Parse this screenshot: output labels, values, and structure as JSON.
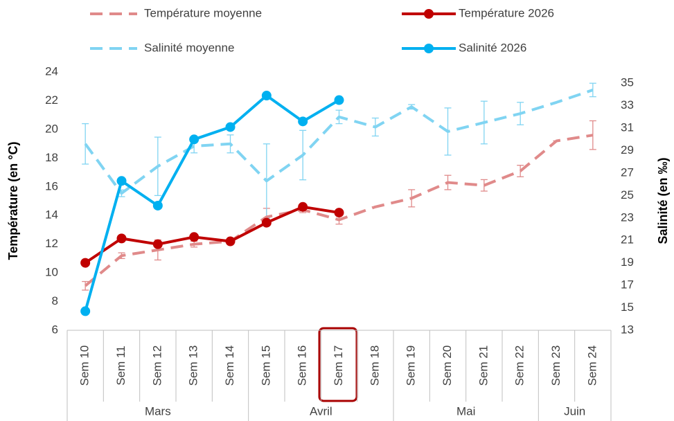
{
  "chart_data": {
    "type": "line",
    "categories": [
      "Sem 10",
      "Sem 11",
      "Sem 12",
      "Sem 13",
      "Sem 14",
      "Sem 15",
      "Sem 16",
      "Sem 17",
      "Sem 18",
      "Sem 19",
      "Sem 20",
      "Sem 21",
      "Sem 22",
      "Sem 23",
      "Sem 24"
    ],
    "groups": [
      {
        "label": "Mars",
        "span": 5
      },
      {
        "label": "Avril",
        "span": 4
      },
      {
        "label": "Mai",
        "span": 4
      },
      {
        "label": "Juin",
        "span": 2
      }
    ],
    "ylabel": "Température (en °C)",
    "y2label": "Salinité (en ‰)",
    "ylim": [
      6,
      24
    ],
    "yticks": [
      6,
      8,
      10,
      12,
      14,
      16,
      18,
      20,
      22,
      24
    ],
    "y2lim": [
      13,
      36
    ],
    "y2ticks": [
      13,
      15,
      17,
      19,
      21,
      23,
      25,
      27,
      29,
      31,
      33,
      35
    ],
    "series": [
      {
        "name": "Température moyenne",
        "color": "#e08a8a",
        "dashed": true,
        "markers": false,
        "axis": "y",
        "values": [
          9.1,
          11.2,
          11.6,
          12.0,
          12.2,
          13.9,
          14.4,
          13.7,
          14.6,
          15.2,
          16.3,
          16.1,
          17.1,
          19.2,
          19.6
        ],
        "errors": [
          0.3,
          0.2,
          0.7,
          0.2,
          0,
          0.6,
          0.2,
          0.3,
          0,
          0.6,
          0.5,
          0.4,
          0.4,
          0,
          1.0
        ]
      },
      {
        "name": "Température 2026",
        "color": "#c00000",
        "dashed": false,
        "markers": true,
        "axis": "y",
        "values": [
          10.7,
          12.4,
          12.0,
          12.5,
          12.2,
          13.5,
          14.6,
          14.2,
          null,
          null,
          null,
          null,
          null,
          null,
          null
        ]
      },
      {
        "name": "Salinité moyenne",
        "color": "#80d4f2",
        "dashed": true,
        "markers": false,
        "axis": "y2",
        "values": [
          29.6,
          25.2,
          27.6,
          29.4,
          29.6,
          26.3,
          28.6,
          32.0,
          31.1,
          32.9,
          30.7,
          31.5,
          32.3,
          33.3,
          34.4
        ],
        "errors": [
          1.8,
          0.3,
          2.6,
          0.6,
          0.8,
          3.3,
          2.2,
          0.6,
          0.8,
          0.2,
          2.1,
          1.9,
          1.0,
          0,
          0.6
        ]
      },
      {
        "name": "Salinité 2026",
        "color": "#00b0f0",
        "dashed": false,
        "markers": true,
        "axis": "y2",
        "values": [
          14.7,
          26.3,
          24.1,
          30.0,
          31.1,
          33.9,
          31.6,
          33.5,
          null,
          null,
          null,
          null,
          null,
          null,
          null
        ]
      }
    ]
  }
}
